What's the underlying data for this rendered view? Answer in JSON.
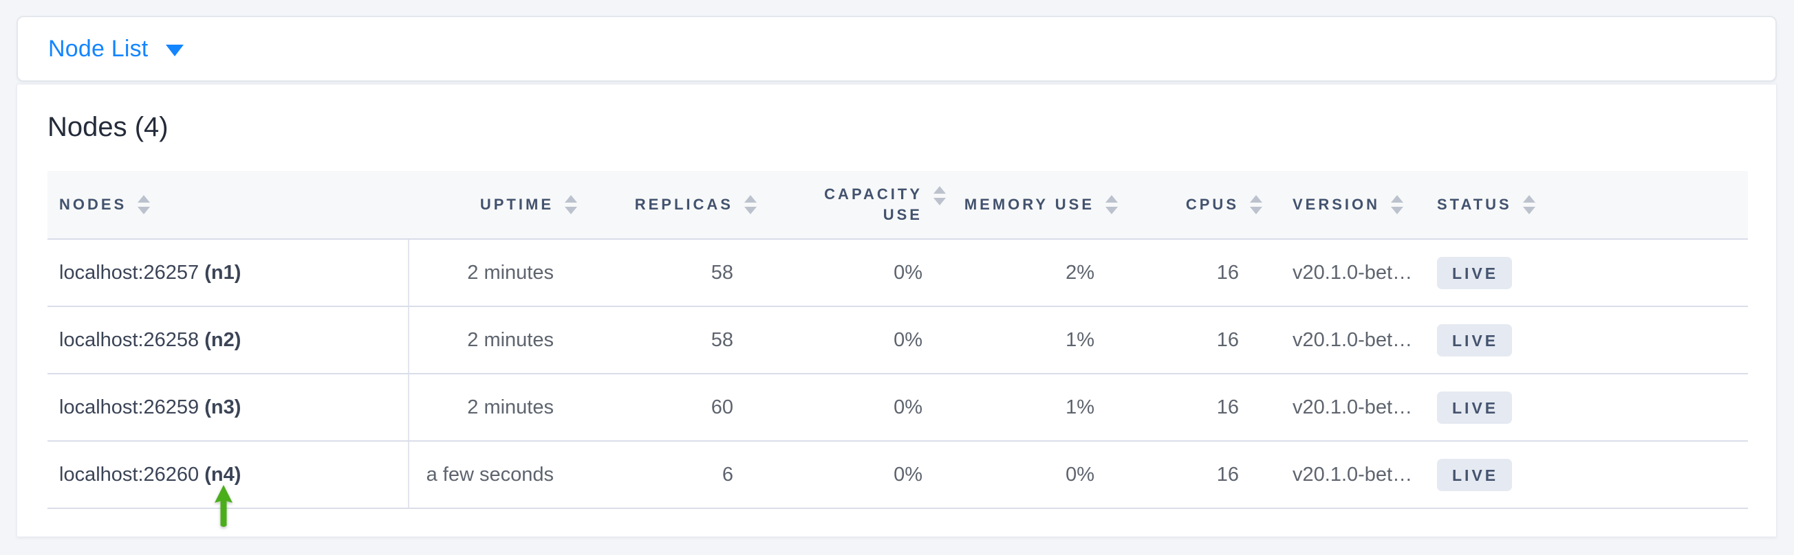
{
  "topbar": {
    "dropdown_label": "Node List"
  },
  "main": {
    "title": "Nodes (4)"
  },
  "table": {
    "columns": [
      "NODES",
      "UPTIME",
      "REPLICAS",
      "CAPACITY USE",
      "MEMORY USE",
      "CPUS",
      "VERSION",
      "STATUS"
    ],
    "rows": [
      {
        "address": "localhost:26257",
        "node_id": "(n1)",
        "uptime": "2 minutes",
        "replicas": "58",
        "capacity_use": "0%",
        "memory_use": "2%",
        "cpus": "16",
        "version": "v20.1.0-bet…",
        "status": "LIVE"
      },
      {
        "address": "localhost:26258",
        "node_id": "(n2)",
        "uptime": "2 minutes",
        "replicas": "58",
        "capacity_use": "0%",
        "memory_use": "1%",
        "cpus": "16",
        "version": "v20.1.0-bet…",
        "status": "LIVE"
      },
      {
        "address": "localhost:26259",
        "node_id": "(n3)",
        "uptime": "2 minutes",
        "replicas": "60",
        "capacity_use": "0%",
        "memory_use": "1%",
        "cpus": "16",
        "version": "v20.1.0-bet…",
        "status": "LIVE"
      },
      {
        "address": "localhost:26260",
        "node_id": "(n4)",
        "uptime": "a few seconds",
        "replicas": "6",
        "capacity_use": "0%",
        "memory_use": "0%",
        "cpus": "16",
        "version": "v20.1.0-bet…",
        "status": "LIVE"
      }
    ]
  },
  "colors": {
    "link_blue": "#1385ff",
    "header_text": "#42526e",
    "badge_bg": "#e5e9f1",
    "badge_text": "#44536e",
    "annotation_green": "#4aae1b"
  }
}
